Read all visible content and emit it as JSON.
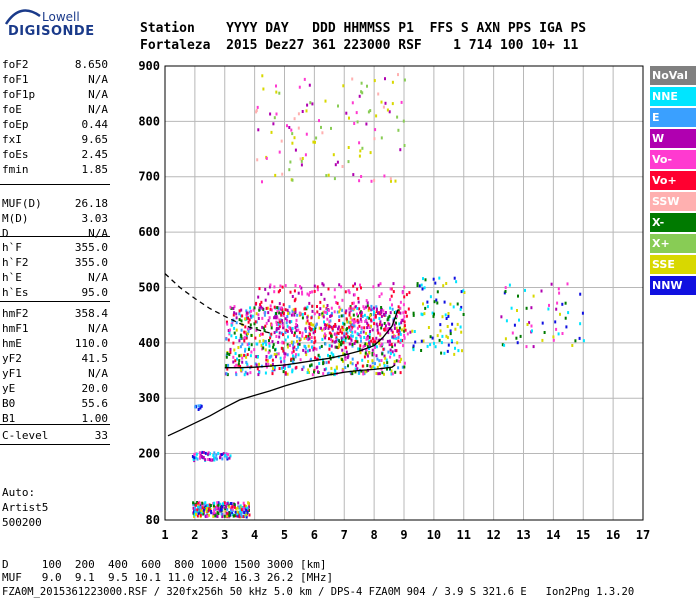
{
  "logo": {
    "line1": "Lowell",
    "line2": "DIGISONDE"
  },
  "header": {
    "row1": "Station    YYYY DAY   DDD HHMMSS P1  FFS S AXN PPS IGA PS",
    "row2": "Fortaleza  2015 Dez27 361 223000 RSF    1 714 100 10+ 11"
  },
  "params": [
    {
      "name": "foF2",
      "value": "8.650"
    },
    {
      "name": "foF1",
      "value": "N/A"
    },
    {
      "name": "foF1p",
      "value": "N/A"
    },
    {
      "name": "foE",
      "value": "N/A"
    },
    {
      "name": "foEp",
      "value": "0.44"
    },
    {
      "name": "fxI",
      "value": "9.65"
    },
    {
      "name": "foEs",
      "value": "2.45"
    },
    {
      "name": "fmin",
      "value": "1.85"
    },
    {
      "name": "MUF(D)",
      "value": "26.18"
    },
    {
      "name": "M(D)",
      "value": "3.03"
    },
    {
      "name": "D",
      "value": "N/A"
    },
    {
      "name": "h`F",
      "value": "355.0"
    },
    {
      "name": "h`F2",
      "value": "355.0"
    },
    {
      "name": "h`E",
      "value": "N/A"
    },
    {
      "name": "h`Es",
      "value": "95.0"
    },
    {
      "name": "hmF2",
      "value": "358.4"
    },
    {
      "name": "hmF1",
      "value": "N/A"
    },
    {
      "name": "hmE",
      "value": "110.0"
    },
    {
      "name": "yF2",
      "value": "41.5"
    },
    {
      "name": "yF1",
      "value": "N/A"
    },
    {
      "name": "yE",
      "value": "20.0"
    },
    {
      "name": "B0",
      "value": "55.6"
    },
    {
      "name": "B1",
      "value": "1.00"
    },
    {
      "name": "C-level",
      "value": "33"
    }
  ],
  "auto": {
    "line1": "Auto:",
    "line2": "Artist5",
    "line3": "500200"
  },
  "legend": [
    {
      "label": "NoVal",
      "color": "#808080"
    },
    {
      "label": "NNE",
      "color": "#00e5ff"
    },
    {
      "label": "E",
      "color": "#3aa0ff"
    },
    {
      "label": "W",
      "color": "#b000b0"
    },
    {
      "label": "Vo-",
      "color": "#ff3ad0"
    },
    {
      "label": "Vo+",
      "color": "#ff0030"
    },
    {
      "label": "SSW",
      "color": "#ffb0b0"
    },
    {
      "label": "X-",
      "color": "#007a00"
    },
    {
      "label": "X+",
      "color": "#88cc55"
    },
    {
      "label": "SSE",
      "color": "#d8d800"
    },
    {
      "label": "NNW",
      "color": "#1010e0"
    }
  ],
  "bottom": {
    "d_row": "D     100  200  400  600  800 1000 1500 3000 [km]",
    "muf_row": "MUF   9.0  9.1  9.5 10.1 11.0 12.4 16.3 26.2 [MHz]"
  },
  "footer": "FZA0M_2015361223000.RSF / 320fx256h 50 kHz 5.0 km / DPS-4 FZA0M 904 / 3.9 S 321.6 E   Ion2Png 1.3.20",
  "chart_data": {
    "type": "scatter",
    "xlim": [
      1,
      17
    ],
    "ylim": [
      80,
      900
    ],
    "xticks": [
      1,
      2,
      3,
      4,
      5,
      6,
      7,
      8,
      9,
      10,
      11,
      12,
      13,
      14,
      15,
      16,
      17
    ],
    "yticks": [
      80,
      200,
      300,
      400,
      500,
      600,
      700,
      800,
      900
    ],
    "grid": true,
    "trace_profile": {
      "x": [
        1.1,
        1.5,
        2.0,
        2.5,
        3.0,
        3.5,
        4.0,
        4.5,
        5.0,
        5.5,
        6.0,
        6.5,
        7.0,
        7.5,
        8.0,
        8.3,
        8.6,
        8.7
      ],
      "y": [
        232,
        242,
        255,
        268,
        283,
        297,
        305,
        313,
        322,
        330,
        337,
        342,
        347,
        350,
        352,
        354,
        356,
        360
      ]
    },
    "virtual_height_fit": {
      "x": [
        3.0,
        3.5,
        4.0,
        4.5,
        5.0,
        5.5,
        6.0,
        6.5,
        7.0,
        7.5,
        8.0,
        8.3,
        8.6,
        8.8
      ],
      "y": [
        355,
        355,
        356,
        358,
        360,
        364,
        368,
        372,
        378,
        385,
        395,
        410,
        430,
        460
      ]
    },
    "dashed_profile": {
      "x": [
        1.0,
        1.5,
        2.0,
        2.5,
        3.0,
        3.5,
        4.0,
        4.5
      ],
      "y": [
        525,
        500,
        480,
        462,
        448,
        435,
        425,
        418
      ]
    },
    "echo_regions": [
      {
        "name": "F-layer main",
        "x": [
          3.0,
          9.0
        ],
        "y": [
          345,
          470
        ],
        "colors": [
          "W",
          "E",
          "Vo+",
          "X-",
          "SSE",
          "Vo-",
          "NNE"
        ],
        "density": 900
      },
      {
        "name": "F-layer upper",
        "x": [
          4.0,
          9.2
        ],
        "y": [
          400,
          510
        ],
        "colors": [
          "W",
          "Vo-",
          "Vo+"
        ],
        "density": 260
      },
      {
        "name": "Spread F near foF2",
        "x": [
          9.2,
          11.0
        ],
        "y": [
          380,
          520
        ],
        "colors": [
          "NNW",
          "X-",
          "SSE",
          "NNE"
        ],
        "density": 90
      },
      {
        "name": "Spread F far",
        "x": [
          12.2,
          15.0
        ],
        "y": [
          395,
          510
        ],
        "colors": [
          "NNE",
          "Vo-",
          "X-",
          "SSE",
          "NNW",
          "W"
        ],
        "density": 60
      },
      {
        "name": "Multi-hop F",
        "x": [
          4.0,
          9.0
        ],
        "y": [
          690,
          890
        ],
        "colors": [
          "SSE",
          "SSW",
          "Vo-",
          "W",
          "X+"
        ],
        "density": 120
      },
      {
        "name": "Es trace",
        "x": [
          1.9,
          3.2
        ],
        "y": [
          190,
          205
        ],
        "colors": [
          "NNE",
          "E",
          "W",
          "Vo-",
          "NNW"
        ],
        "density": 60
      },
      {
        "name": "Es low",
        "x": [
          1.9,
          3.8
        ],
        "y": [
          88,
          115
        ],
        "colors": [
          "NNE",
          "E",
          "W",
          "Vo-",
          "X-",
          "SSE",
          "NNW",
          "Vo+"
        ],
        "density": 260
      },
      {
        "name": "Es mid",
        "x": [
          1.9,
          2.2
        ],
        "y": [
          280,
          290
        ],
        "colors": [
          "NNW",
          "E"
        ],
        "density": 10
      }
    ]
  }
}
